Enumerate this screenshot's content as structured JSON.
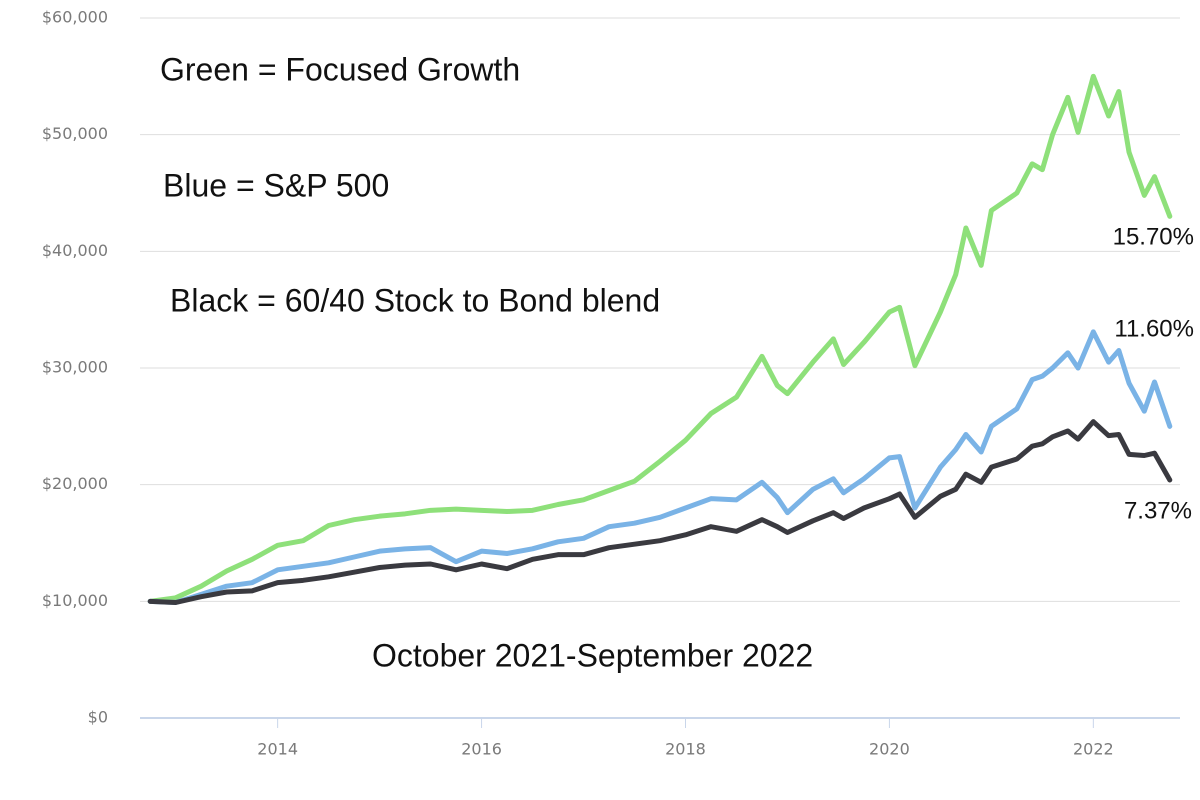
{
  "chart_data": {
    "type": "line",
    "annotations": [
      "Green = Focused Growth",
      "Blue = S&P 500",
      "Black = 60/40 Stock to Bond blend",
      "October 2021-September 2022",
      "15.70%",
      "11.60%",
      "7.37%"
    ],
    "x": [
      2012.75,
      2013,
      2013.25,
      2013.5,
      2013.75,
      2014,
      2014.25,
      2014.5,
      2014.75,
      2015,
      2015.25,
      2015.5,
      2015.75,
      2016,
      2016.25,
      2016.5,
      2016.75,
      2017,
      2017.25,
      2017.5,
      2017.75,
      2018,
      2018.25,
      2018.5,
      2018.75,
      2018.9,
      2019,
      2019.25,
      2019.45,
      2019.55,
      2019.75,
      2020,
      2020.1,
      2020.25,
      2020.5,
      2020.65,
      2020.75,
      2020.9,
      2021,
      2021.25,
      2021.4,
      2021.5,
      2021.6,
      2021.75,
      2021.85,
      2022,
      2022.15,
      2022.25,
      2022.35,
      2022.5,
      2022.6,
      2022.75
    ],
    "series": [
      {
        "color": "#8ee07a",
        "values": [
          10000,
          10300,
          11300,
          12600,
          13600,
          14800,
          15200,
          16500,
          17000,
          17300,
          17500,
          17800,
          17900,
          17800,
          17700,
          17800,
          18300,
          18700,
          19500,
          20300,
          22000,
          23800,
          26100,
          27500,
          31000,
          28500,
          27800,
          30500,
          32500,
          30300,
          32200,
          34800,
          35200,
          30200,
          34800,
          38000,
          42000,
          38800,
          43500,
          45000,
          47500,
          47000,
          50000,
          53200,
          50200,
          55000,
          51600,
          53700,
          48500,
          44800,
          46400,
          43000
        ]
      },
      {
        "color": "#7ab3e6",
        "values": [
          10000,
          9900,
          10600,
          11300,
          11600,
          12700,
          13000,
          13300,
          13800,
          14300,
          14500,
          14600,
          13400,
          14300,
          14100,
          14500,
          15100,
          15400,
          16400,
          16700,
          17200,
          18000,
          18800,
          18700,
          20200,
          18900,
          17600,
          19600,
          20500,
          19300,
          20500,
          22300,
          22400,
          18000,
          21500,
          23000,
          24300,
          22800,
          25000,
          26500,
          29000,
          29300,
          30000,
          31300,
          30000,
          33100,
          30500,
          31500,
          28700,
          26300,
          28800,
          25000
        ]
      },
      {
        "color": "#3a3a40",
        "values": [
          10000,
          9900,
          10400,
          10800,
          10900,
          11600,
          11800,
          12100,
          12500,
          12900,
          13100,
          13200,
          12700,
          13200,
          12800,
          13600,
          14000,
          14000,
          14600,
          14900,
          15200,
          15700,
          16400,
          16000,
          17000,
          16400,
          15900,
          16900,
          17600,
          17100,
          18000,
          18800,
          19200,
          17200,
          19000,
          19600,
          20900,
          20200,
          21500,
          22200,
          23300,
          23500,
          24100,
          24600,
          23900,
          25400,
          24200,
          24300,
          22600,
          22500,
          22700,
          20400
        ]
      }
    ],
    "xlim": [
      2012.65,
      2022.85
    ],
    "xticks": [
      2014,
      2016,
      2018,
      2020,
      2022
    ],
    "ylim": [
      0,
      60000
    ],
    "yticks": [
      {
        "value": 0,
        "label": "$0"
      },
      {
        "value": 10000,
        "label": "$10,000"
      },
      {
        "value": 20000,
        "label": "$20,000"
      },
      {
        "value": 30000,
        "label": "$30,000"
      },
      {
        "value": 40000,
        "label": "$40,000"
      },
      {
        "value": 50000,
        "label": "$50,000"
      },
      {
        "value": 60000,
        "label": "$60,000"
      }
    ],
    "grid": true
  }
}
